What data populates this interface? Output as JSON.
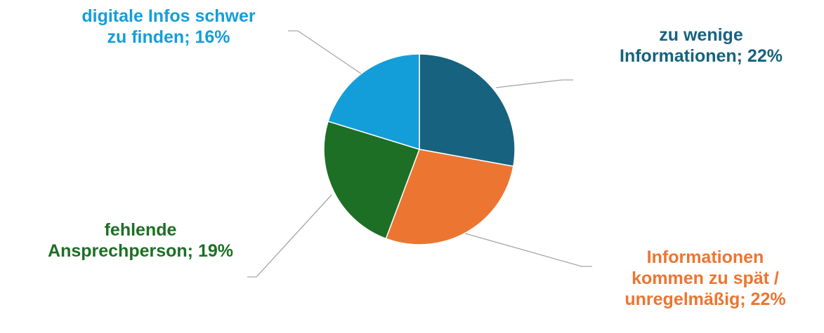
{
  "chart_data": {
    "type": "pie",
    "title": "",
    "legend": "none",
    "slices": [
      {
        "label_lines": [
          "zu wenige",
          "Informationen; 22%"
        ],
        "category": "zu wenige Informationen",
        "value": 22,
        "color": "#17627f"
      },
      {
        "label_lines": [
          "Informationen",
          "kommen zu spät /",
          "unregelmäßig; 22%"
        ],
        "category": "Informationen kommen zu spät / unregelmäßig",
        "value": 22,
        "color": "#ec7532"
      },
      {
        "label_lines": [
          "fehlende",
          "Ansprechperson; 19%"
        ],
        "category": "fehlende Ansprechperson",
        "value": 19,
        "color": "#1d6f25"
      },
      {
        "label_lines": [
          "digitale Infos schwer",
          "zu finden; 16%"
        ],
        "category": "digitale Infos schwer zu finden",
        "value": 16,
        "color": "#149ed9"
      }
    ]
  }
}
